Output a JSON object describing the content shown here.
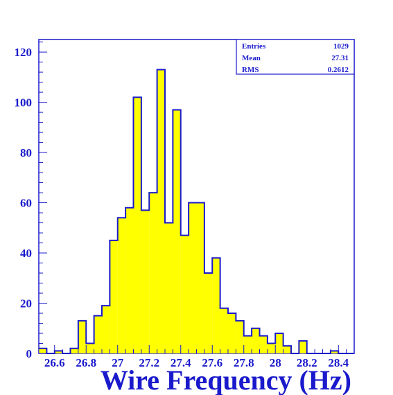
{
  "chart_data": {
    "type": "bar",
    "subtype": "histogram",
    "xlabel": "Wire Frequency (Hz)",
    "ylabel": "",
    "xlim": [
      26.5,
      28.5
    ],
    "ylim": [
      0,
      125
    ],
    "bin_width": 0.05,
    "bin_start": 26.5,
    "values": [
      2,
      0,
      1,
      0,
      2,
      13,
      4,
      15,
      19,
      45,
      54,
      58,
      102,
      57,
      64,
      113,
      52,
      97,
      47,
      60,
      60,
      32,
      38,
      18,
      16,
      13,
      7,
      10,
      7,
      4,
      8,
      3,
      0,
      5,
      0,
      0,
      0,
      1,
      0,
      0
    ],
    "x_ticks": [
      26.6,
      26.8,
      27,
      27.2,
      27.4,
      27.6,
      27.8,
      28,
      28.2,
      28.4
    ],
    "x_tick_labels": [
      "26.6",
      "26.8",
      "27",
      "27.2",
      "27.4",
      "27.6",
      "27.8",
      "28",
      "28.2",
      "28.4"
    ],
    "y_ticks": [
      0,
      20,
      40,
      60,
      80,
      100,
      120
    ],
    "y_tick_labels": [
      "0",
      "20",
      "40",
      "60",
      "80",
      "100",
      "120"
    ],
    "stats": [
      {
        "label": "Entries",
        "value": "1029"
      },
      {
        "label": "Mean",
        "value": "27.31"
      },
      {
        "label": "RMS",
        "value": "0.2612"
      }
    ],
    "fill_color": "#ffff00",
    "line_color": "#1a1acc",
    "legend_placement": "top-right"
  }
}
